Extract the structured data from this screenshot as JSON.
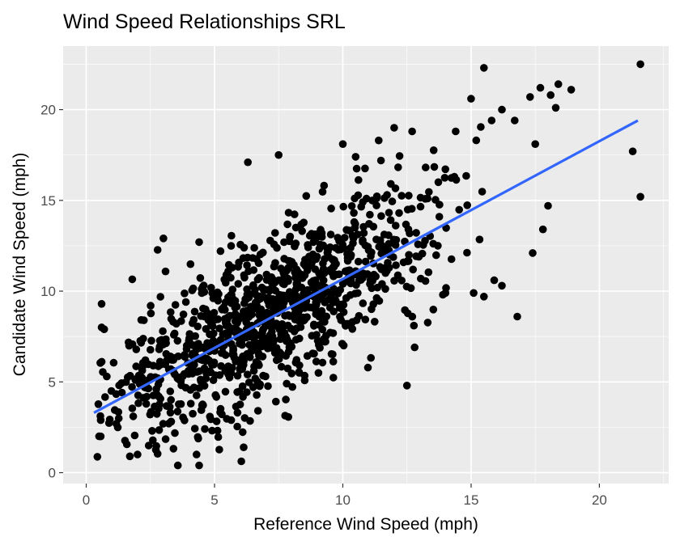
{
  "chart_data": {
    "type": "scatter",
    "title": "Wind Speed Relationships SRL",
    "xlabel": "Reference Wind Speed (mph)",
    "ylabel": "Candidate Wind Speed (mph)",
    "xlim": [
      -0.9,
      22.7
    ],
    "ylim": [
      -0.6,
      23.5
    ],
    "x_ticks": [
      0,
      5,
      10,
      15,
      20
    ],
    "y_ticks": [
      0,
      5,
      10,
      15,
      20
    ],
    "grid": true,
    "legend": "none",
    "colors": {
      "panel": "#ebebeb",
      "grid_major": "#ffffff",
      "points": "#000000",
      "fit_line": "#3366ff"
    },
    "fit_line": {
      "x": [
        0.3,
        21.5
      ],
      "y": [
        3.3,
        19.4
      ]
    },
    "points": {
      "count": 1100,
      "slope": 0.76,
      "intercept": 3.1,
      "x_range": [
        0.2,
        21.6
      ],
      "y_range": [
        0.4,
        22.5
      ],
      "outliers": [
        [
          0.6,
          9.3
        ],
        [
          0.6,
          8.0
        ],
        [
          0.7,
          7.9
        ],
        [
          0.8,
          5.3
        ],
        [
          0.5,
          2.0
        ],
        [
          1.7,
          0.9
        ],
        [
          2.0,
          1.0
        ],
        [
          4.3,
          1.0
        ],
        [
          4.4,
          0.4
        ],
        [
          4.4,
          12.7
        ],
        [
          6.3,
          17.1
        ],
        [
          7.5,
          17.5
        ],
        [
          10.5,
          17.4
        ],
        [
          10.0,
          18.1
        ],
        [
          11.4,
          18.3
        ],
        [
          12.0,
          19.0
        ],
        [
          12.7,
          18.8
        ],
        [
          14.4,
          18.8
        ],
        [
          15.0,
          20.6
        ],
        [
          15.5,
          22.3
        ],
        [
          15.8,
          19.4
        ],
        [
          16.2,
          20.0
        ],
        [
          16.7,
          19.4
        ],
        [
          17.3,
          20.7
        ],
        [
          17.7,
          21.2
        ],
        [
          18.1,
          20.8
        ],
        [
          18.3,
          20.1
        ],
        [
          18.4,
          21.4
        ],
        [
          18.9,
          21.1
        ],
        [
          21.6,
          22.5
        ],
        [
          21.3,
          17.7
        ],
        [
          21.6,
          15.2
        ],
        [
          17.5,
          18.1
        ],
        [
          17.8,
          13.4
        ],
        [
          17.4,
          12.1
        ],
        [
          18.0,
          14.7
        ],
        [
          16.8,
          8.6
        ],
        [
          12.8,
          6.9
        ],
        [
          12.5,
          4.8
        ],
        [
          15.1,
          9.9
        ],
        [
          15.5,
          9.7
        ],
        [
          15.9,
          10.6
        ],
        [
          16.2,
          10.3
        ],
        [
          13.9,
          9.8
        ],
        [
          14.0,
          9.9
        ]
      ]
    }
  }
}
